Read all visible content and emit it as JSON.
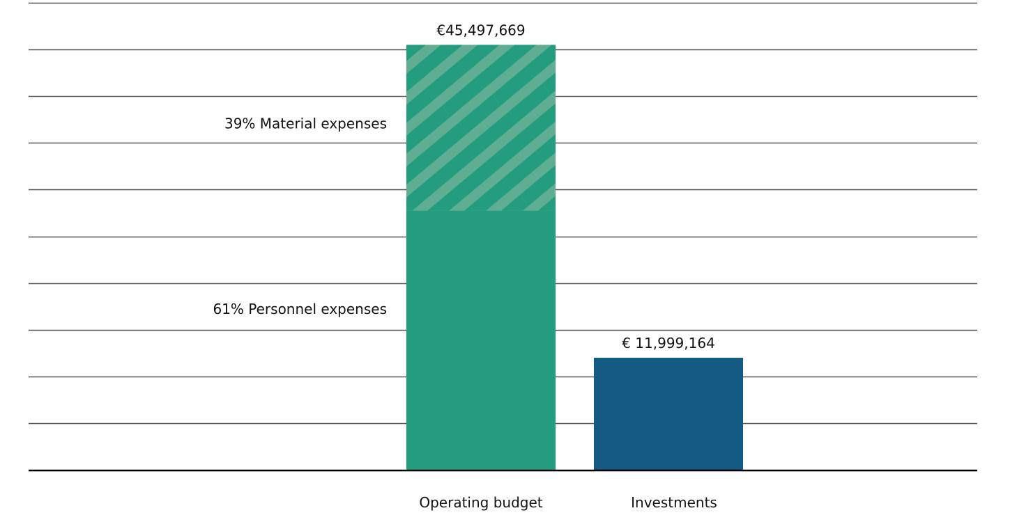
{
  "chart_data": {
    "type": "bar",
    "stacked": true,
    "title": "",
    "xlabel": "",
    "ylabel": "",
    "ylim": [
      0,
      50000000
    ],
    "grid_step": 5000000,
    "grid": true,
    "show_y_ticks": false,
    "categories": [
      "Operating budget",
      "Investments"
    ],
    "totals": [
      45497669,
      11999164
    ],
    "total_labels": [
      "€45,497,669",
      "€ 11,999,164"
    ],
    "series": [
      {
        "name": "Personnel expenses",
        "share_percent": 61,
        "values": [
          27753578,
          0
        ],
        "color": "#239d7e",
        "pattern": "solid",
        "label": "61%  Personnel expenses"
      },
      {
        "name": "Material expenses",
        "share_percent": 39,
        "values": [
          17744091,
          0
        ],
        "color": "#239d7e",
        "pattern": "hatched",
        "stripe_color": "#5fae93",
        "label": "39% Material expenses"
      },
      {
        "name": "Investments",
        "values": [
          0,
          11999164
        ],
        "color": "#135b82",
        "pattern": "solid"
      }
    ]
  }
}
